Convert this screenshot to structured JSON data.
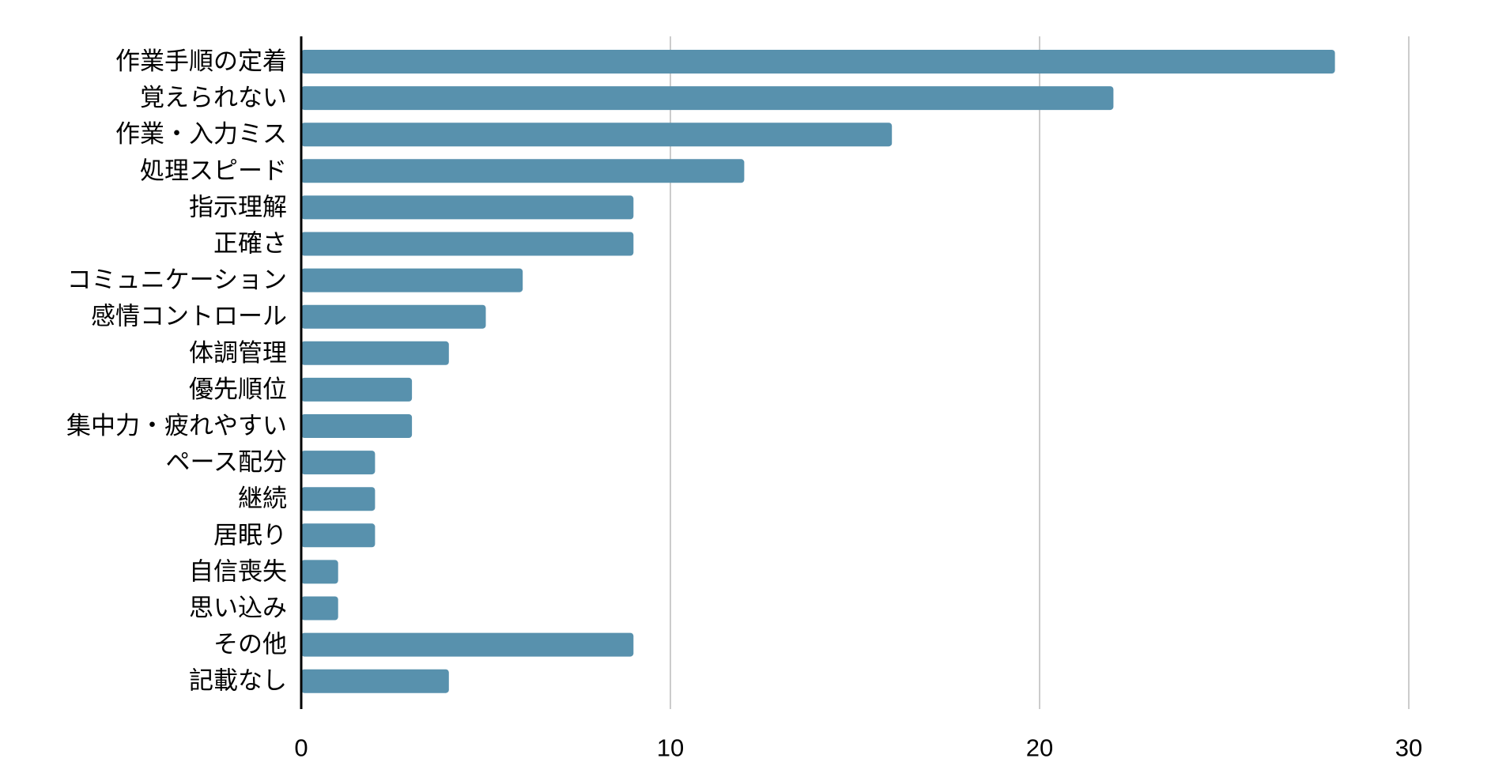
{
  "chart_data": {
    "type": "bar",
    "orientation": "horizontal",
    "title": "",
    "xlabel": "",
    "ylabel": "",
    "categories": [
      "作業手順の定着",
      "覚えられない",
      "作業・入力ミス",
      "処理スピード",
      "指示理解",
      "正確さ",
      "コミュニケーション",
      "感情コントロール",
      "体調管理",
      "優先順位",
      "集中力・疲れやすい",
      "ペース配分",
      "継続",
      "居眠り",
      "自信喪失",
      "思い込み",
      "その他",
      "記載なし"
    ],
    "values": [
      28,
      22,
      16,
      12,
      9,
      9,
      6,
      5,
      4,
      3,
      3,
      2,
      2,
      2,
      1,
      1,
      9,
      4
    ],
    "xlim": [
      0,
      30
    ],
    "xticks": [
      0,
      10,
      20,
      30
    ],
    "xtick_labels": [
      "0",
      "10",
      "20",
      "30"
    ],
    "grid": true,
    "legend": "none",
    "colors": {
      "bar": "#5891ad",
      "grid": "#cccccc",
      "axis": "#000000",
      "text": "#000000"
    }
  }
}
